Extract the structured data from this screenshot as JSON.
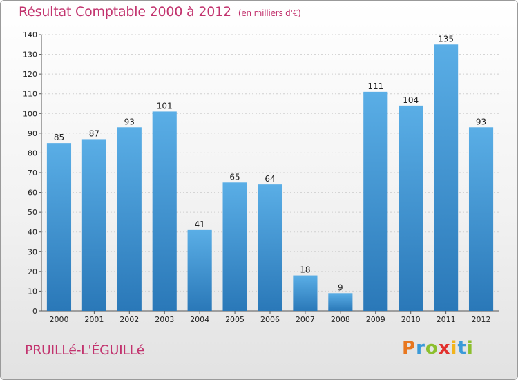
{
  "header": {
    "title": "Résultat Comptable 2000 à 2012",
    "subtitle": "(en milliers d'€)"
  },
  "footer": {
    "commune": "PRUILLé-L'ÉGUILLé",
    "logo_letters": [
      "P",
      "r",
      "o",
      "x",
      "i",
      "t",
      "i"
    ],
    "logo_colors": [
      "#e8771f",
      "#3a9ad9",
      "#8cbf2e",
      "#e2312d",
      "#f2b41c",
      "#3a9ad9",
      "#8cbf2e"
    ]
  },
  "colors": {
    "bar_top": "#5aaee6",
    "bar_bottom": "#2a78b8",
    "accent": "#c2336e"
  },
  "chart_data": {
    "type": "bar",
    "categories": [
      "2000",
      "2001",
      "2002",
      "2003",
      "2004",
      "2005",
      "2006",
      "2007",
      "2008",
      "2009",
      "2010",
      "2011",
      "2012"
    ],
    "values": [
      85,
      87,
      93,
      101,
      41,
      65,
      64,
      18,
      9,
      111,
      104,
      135,
      93
    ],
    "ylim": [
      0,
      140
    ],
    "yticks": [
      0,
      10,
      20,
      30,
      40,
      50,
      60,
      70,
      80,
      90,
      100,
      110,
      120,
      130,
      140
    ],
    "grid": true
  }
}
